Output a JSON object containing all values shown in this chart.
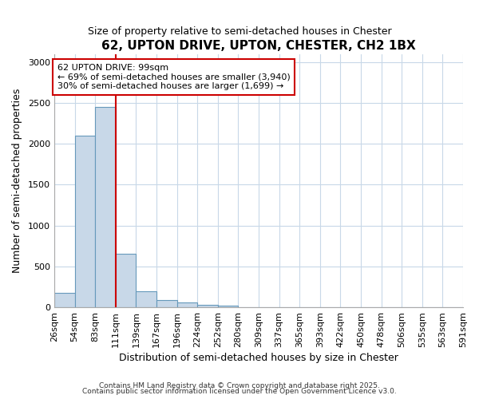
{
  "title": "62, UPTON DRIVE, UPTON, CHESTER, CH2 1BX",
  "subtitle": "Size of property relative to semi-detached houses in Chester",
  "xlabel": "Distribution of semi-detached houses by size in Chester",
  "ylabel": "Number of semi-detached properties",
  "bar_values": [
    175,
    2100,
    2450,
    650,
    200,
    90,
    55,
    30,
    20,
    0,
    0,
    0,
    0,
    0,
    0,
    0,
    0,
    0,
    0,
    0
  ],
  "bin_labels": [
    "26sqm",
    "54sqm",
    "83sqm",
    "111sqm",
    "139sqm",
    "167sqm",
    "196sqm",
    "224sqm",
    "252sqm",
    "280sqm",
    "309sqm",
    "337sqm",
    "365sqm",
    "393sqm",
    "422sqm",
    "450sqm",
    "478sqm",
    "506sqm",
    "535sqm",
    "563sqm",
    "591sqm"
  ],
  "bar_color": "#c8d8e8",
  "bar_edge_color": "#6699bb",
  "property_line_color": "#cc0000",
  "annotation_text": "62 UPTON DRIVE: 99sqm\n← 69% of semi-detached houses are smaller (3,940)\n30% of semi-detached houses are larger (1,699) →",
  "annotation_box_color": "white",
  "annotation_border_color": "#cc0000",
  "ylim": [
    0,
    3100
  ],
  "yticks": [
    0,
    500,
    1000,
    1500,
    2000,
    2500,
    3000
  ],
  "background_color": "#ffffff",
  "plot_bg_color": "#ffffff",
  "grid_color": "#c8d8e8",
  "footer_line1": "Contains HM Land Registry data © Crown copyright and database right 2025.",
  "footer_line2": "Contains public sector information licensed under the Open Government Licence v3.0."
}
